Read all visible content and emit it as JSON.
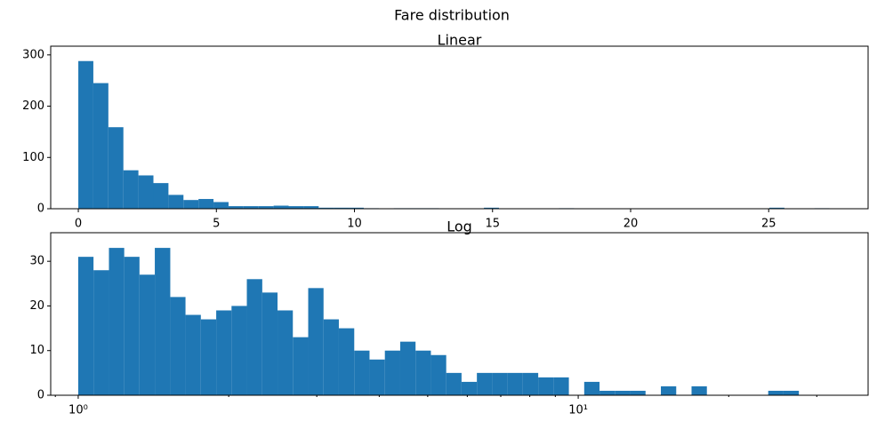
{
  "title": "Fare distribution",
  "chart_data": [
    {
      "type": "histogram",
      "title": "Linear",
      "color": "#1f77b4",
      "bins": [
        0,
        0.544,
        1.088,
        1.632,
        2.176,
        2.72,
        3.264,
        3.808,
        4.352,
        4.896,
        5.44,
        5.984,
        6.528,
        7.072,
        7.616,
        8.16,
        8.704,
        9.248,
        9.792,
        10.336,
        10.88,
        11.424,
        11.968,
        12.512,
        13.056,
        13.6,
        14.144,
        14.688,
        15.232,
        15.776,
        16.32,
        16.864,
        17.408,
        17.952,
        18.496,
        19.04,
        19.584,
        20.128,
        20.672,
        21.216,
        21.76,
        22.304,
        22.848,
        23.392,
        23.936,
        24.48,
        25.024,
        25.568,
        26.112,
        26.656,
        27.2
      ],
      "values": [
        288,
        245,
        159,
        75,
        65,
        50,
        27,
        17,
        19,
        13,
        5,
        5,
        5,
        6,
        5,
        5,
        2,
        2,
        2,
        1,
        0,
        1,
        1,
        1,
        0,
        0,
        0,
        2,
        0,
        0,
        0,
        0,
        1,
        0,
        0,
        0,
        0,
        0,
        0,
        0,
        0,
        0,
        0,
        0,
        0,
        0,
        2,
        0,
        0,
        1
      ],
      "xlim": [
        -1.0,
        28.6
      ],
      "xticks": [
        0,
        5,
        10,
        15,
        20,
        25
      ],
      "ylim": [
        0,
        317
      ],
      "yticks": [
        0,
        100,
        200,
        300
      ]
    },
    {
      "type": "histogram",
      "title": "Log",
      "color": "#1f77b4",
      "xscale": "log",
      "bins": [
        1,
        1.073,
        1.152,
        1.236,
        1.326,
        1.423,
        1.528,
        1.639,
        1.759,
        1.888,
        2.026,
        2.174,
        2.334,
        2.504,
        2.687,
        2.884,
        3.095,
        3.321,
        3.565,
        3.825,
        4.105,
        4.406,
        4.728,
        5.074,
        5.445,
        5.843,
        6.271,
        6.73,
        7.222,
        7.75,
        8.318,
        8.926,
        9.579,
        10.28,
        11.032,
        11.839,
        12.706,
        13.635,
        14.633,
        15.704,
        16.852,
        18.086,
        19.409,
        20.829,
        22.353,
        23.988,
        25.743,
        27.627
      ],
      "values": [
        31,
        28,
        33,
        31,
        27,
        33,
        22,
        18,
        17,
        19,
        20,
        26,
        23,
        19,
        13,
        24,
        17,
        15,
        10,
        8,
        10,
        12,
        10,
        9,
        5,
        3,
        5,
        5,
        5,
        5,
        4,
        4,
        0,
        3,
        1,
        1,
        1,
        0,
        2,
        0,
        2,
        0,
        0,
        0,
        0,
        1,
        1
      ],
      "xlim": [
        0.881,
        38
      ],
      "xticks": [
        {
          "value": 1,
          "label": "10⁰"
        },
        {
          "value": 10,
          "label": "10¹"
        }
      ],
      "xminorticks": [
        0.9,
        2,
        3,
        4,
        5,
        6,
        7,
        8,
        9,
        20,
        30
      ],
      "ylim": [
        0,
        36.4
      ],
      "yticks": [
        0,
        10,
        20,
        30
      ]
    }
  ]
}
